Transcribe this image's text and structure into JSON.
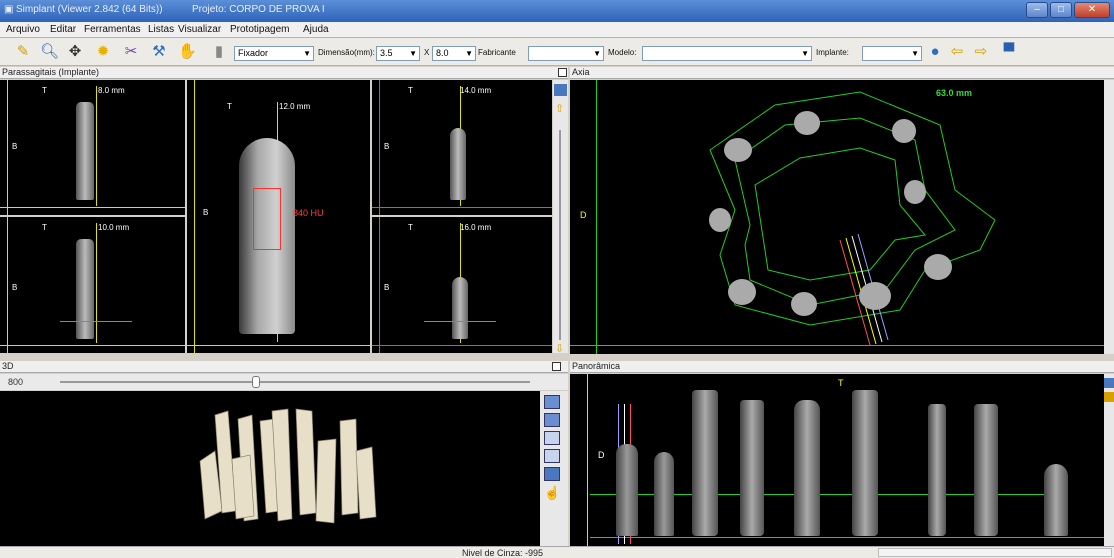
{
  "window": {
    "app_title": "Simplant (Viewer 2.842 (64 Bits))",
    "project_title": "Projeto: CORPO DE PROVA I"
  },
  "menu": [
    "Arquivo",
    "Editar",
    "Ferramentas",
    "Listas",
    "Visualizar",
    "Prototipagem",
    "Ajuda"
  ],
  "toolbar": {
    "fixador": "Fixador",
    "dimension_label": "Dimensão(mm):",
    "dim_a": "3.5",
    "x_label": "X",
    "dim_b": "8.0",
    "fabricante_label": "Fabricante",
    "fabricante_value": "",
    "modelo_label": "Modelo:",
    "modelo_value": "",
    "implante_label": "Implante:",
    "implante_value": ""
  },
  "panels": {
    "parasagittal": {
      "title": "Parassagitais (Implante)",
      "views": [
        {
          "measure": "8.0 mm",
          "top": "T",
          "side": "B"
        },
        {
          "measure": "12.0 mm",
          "top": "T",
          "side": "B",
          "hu": "840 HU"
        },
        {
          "measure": "14.0 mm",
          "top": "T",
          "side": "B"
        },
        {
          "measure": "10.0 mm",
          "top": "T",
          "side": "B"
        },
        {
          "measure": "16.0 mm",
          "top": "T",
          "side": "B"
        }
      ]
    },
    "axial": {
      "title": "Axia",
      "measure": "63.0 mm",
      "side": "D"
    },
    "three_d": {
      "title": "3D",
      "slider_value": "800"
    },
    "panoramic": {
      "title": "Panorâmica",
      "top": "T",
      "side": "D"
    }
  },
  "status": {
    "gray_level": "Nivel de Cinza: -995"
  },
  "colors": {
    "green_guide": "#22cc22",
    "yellow_ruler": "#e2e200",
    "red_ruler": "#ff4040",
    "accent": "#2f63b8"
  }
}
